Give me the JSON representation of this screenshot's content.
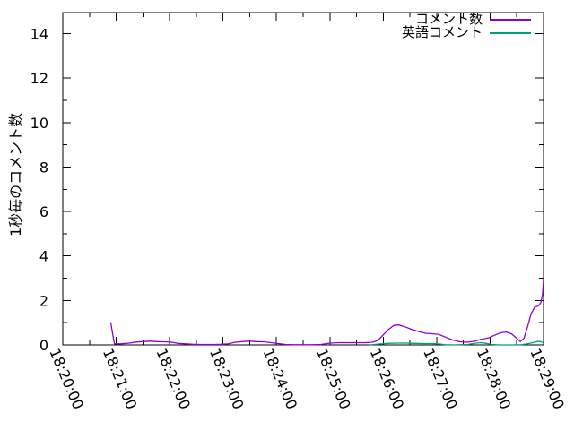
{
  "window": {
    "background": "#ffffff"
  },
  "chart_data": {
    "type": "line",
    "title": "",
    "xlabel": "",
    "ylabel": "1秒毎のコメント数",
    "x_range": [
      "18:20:00",
      "18:29:00"
    ],
    "ylim": [
      0,
      14.95
    ],
    "yticks": [
      0,
      2,
      4,
      6,
      8,
      10,
      12,
      14
    ],
    "xticks": [
      "18:20:00",
      "18:21:00",
      "18:22:00",
      "18:23:00",
      "18:24:00",
      "18:25:00",
      "18:26:00",
      "18:27:00",
      "18:28:00",
      "18:29:00"
    ],
    "grid": false,
    "legend_position": "top-right-inside",
    "axis_color": "#000000",
    "series": [
      {
        "name": "コメント数",
        "color": "#9400D3",
        "points": [
          [
            "18:20:54",
            1.0
          ],
          [
            "18:20:56",
            0.5
          ],
          [
            "18:20:58",
            0.05
          ],
          [
            "18:21:05",
            0.05
          ],
          [
            "18:21:15",
            0.08
          ],
          [
            "18:21:22",
            0.13
          ],
          [
            "18:21:30",
            0.15
          ],
          [
            "18:21:38",
            0.17
          ],
          [
            "18:21:46",
            0.15
          ],
          [
            "18:21:54",
            0.14
          ],
          [
            "18:22:02",
            0.12
          ],
          [
            "18:22:10",
            0.07
          ],
          [
            "18:22:18",
            0.05
          ],
          [
            "18:22:26",
            0.03
          ],
          [
            "18:22:34",
            0.02
          ],
          [
            "18:22:42",
            0.02
          ],
          [
            "18:22:50",
            0.02
          ],
          [
            "18:22:58",
            0.03
          ],
          [
            "18:23:06",
            0.05
          ],
          [
            "18:23:14",
            0.12
          ],
          [
            "18:23:22",
            0.15
          ],
          [
            "18:23:30",
            0.17
          ],
          [
            "18:23:38",
            0.15
          ],
          [
            "18:23:46",
            0.14
          ],
          [
            "18:23:54",
            0.1
          ],
          [
            "18:24:02",
            0.06
          ],
          [
            "18:24:10",
            0.02
          ],
          [
            "18:24:20",
            0.01
          ],
          [
            "18:24:30",
            0.01
          ],
          [
            "18:24:40",
            0.01
          ],
          [
            "18:24:50",
            0.02
          ],
          [
            "18:25:00",
            0.08
          ],
          [
            "18:25:10",
            0.1
          ],
          [
            "18:25:20",
            0.1
          ],
          [
            "18:25:30",
            0.1
          ],
          [
            "18:25:40",
            0.1
          ],
          [
            "18:25:48",
            0.12
          ],
          [
            "18:25:54",
            0.2
          ],
          [
            "18:26:00",
            0.45
          ],
          [
            "18:26:06",
            0.7
          ],
          [
            "18:26:12",
            0.88
          ],
          [
            "18:26:18",
            0.9
          ],
          [
            "18:26:24",
            0.82
          ],
          [
            "18:26:32",
            0.7
          ],
          [
            "18:26:40",
            0.6
          ],
          [
            "18:26:48",
            0.52
          ],
          [
            "18:26:56",
            0.5
          ],
          [
            "18:27:02",
            0.48
          ],
          [
            "18:27:10",
            0.35
          ],
          [
            "18:27:18",
            0.22
          ],
          [
            "18:27:26",
            0.14
          ],
          [
            "18:27:34",
            0.12
          ],
          [
            "18:27:42",
            0.16
          ],
          [
            "18:27:50",
            0.25
          ],
          [
            "18:27:58",
            0.32
          ],
          [
            "18:28:06",
            0.45
          ],
          [
            "18:28:12",
            0.55
          ],
          [
            "18:28:18",
            0.58
          ],
          [
            "18:28:24",
            0.5
          ],
          [
            "18:28:30",
            0.3
          ],
          [
            "18:28:34",
            0.15
          ],
          [
            "18:28:38",
            0.3
          ],
          [
            "18:28:42",
            0.8
          ],
          [
            "18:28:46",
            1.4
          ],
          [
            "18:28:50",
            1.7
          ],
          [
            "18:28:54",
            1.75
          ],
          [
            "18:28:57",
            1.9
          ],
          [
            "18:28:59",
            2.3
          ],
          [
            "18:29:00",
            3.0
          ]
        ]
      },
      {
        "name": "英語コメント",
        "color": "#009E73",
        "points": [
          [
            "18:25:45",
            0.0
          ],
          [
            "18:25:55",
            0.04
          ],
          [
            "18:26:05",
            0.07
          ],
          [
            "18:26:15",
            0.08
          ],
          [
            "18:26:25",
            0.08
          ],
          [
            "18:26:35",
            0.07
          ],
          [
            "18:26:45",
            0.06
          ],
          [
            "18:26:55",
            0.06
          ],
          [
            "18:27:03",
            0.04
          ],
          [
            "18:27:10",
            0.01
          ],
          [
            "18:27:20",
            0.0
          ],
          [
            "18:27:35",
            0.02
          ],
          [
            "18:27:44",
            0.08
          ],
          [
            "18:27:50",
            0.1
          ],
          [
            "18:27:56",
            0.07
          ],
          [
            "18:28:02",
            0.02
          ],
          [
            "18:28:10",
            0.0
          ],
          [
            "18:28:25",
            0.0
          ],
          [
            "18:28:35",
            0.01
          ],
          [
            "18:28:42",
            0.05
          ],
          [
            "18:28:48",
            0.1
          ],
          [
            "18:28:54",
            0.16
          ],
          [
            "18:28:57",
            0.15
          ],
          [
            "18:29:00",
            0.08
          ]
        ]
      }
    ]
  }
}
